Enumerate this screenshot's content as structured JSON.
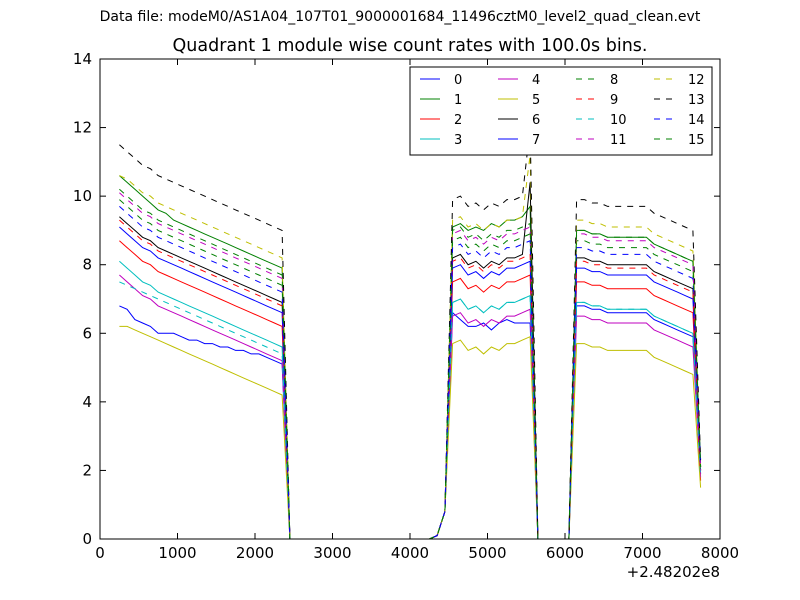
{
  "figure": {
    "suptitle": "Data file: modeM0/AS1A04_107T01_9000001684_11496cztM0_level2_quad_clean.evt"
  },
  "chart_data": {
    "type": "line",
    "title": "Quadrant 1 module wise count rates with 100.0s bins.",
    "xlabel": "",
    "ylabel": "",
    "x_offset_label": "+2.48202e8",
    "xlim": [
      0,
      8000
    ],
    "ylim": [
      0,
      14
    ],
    "xticks": [
      0,
      1000,
      2000,
      3000,
      4000,
      5000,
      6000,
      7000,
      8000
    ],
    "yticks": [
      0,
      2,
      4,
      6,
      8,
      10,
      12,
      14
    ],
    "legend_position": "top-right",
    "legend_columns": 4,
    "x": [
      250,
      350,
      450,
      550,
      650,
      750,
      850,
      950,
      1050,
      1150,
      1250,
      1350,
      1450,
      1550,
      1650,
      1750,
      1850,
      1950,
      2050,
      2150,
      2250,
      2350,
      2450,
      2550,
      2650,
      2750,
      2850,
      2950,
      3050,
      3150,
      3250,
      3350,
      3450,
      3550,
      3650,
      3750,
      3850,
      3950,
      4050,
      4150,
      4250,
      4350,
      4450,
      4550,
      4650,
      4750,
      4850,
      4950,
      5050,
      5150,
      5250,
      5350,
      5450,
      5550,
      5650,
      5750,
      5850,
      5950,
      6050,
      6150,
      6250,
      6350,
      6450,
      6550,
      6650,
      6750,
      6850,
      6950,
      7050,
      7150,
      7250,
      7350,
      7450,
      7550,
      7650,
      7750
    ],
    "series": [
      {
        "name": "0",
        "color": "#0000ff",
        "dash": "solid",
        "active": [
          6.8,
          6.7,
          6.4,
          6.3,
          6.2,
          6.0,
          6.0,
          6.0,
          5.9,
          5.8,
          5.8,
          5.7,
          5.7,
          5.6,
          5.6,
          5.5,
          5.5,
          5.4,
          5.4,
          5.3,
          5.2,
          5.1
        ],
        "mid": [
          6.6,
          6.4,
          6.2,
          6.2,
          6.3,
          6.1,
          6.3,
          6.4,
          6.3,
          6.3,
          6.3
        ],
        "end": [
          6.8,
          6.8,
          6.7,
          6.7,
          6.6,
          6.6,
          6.6,
          6.6,
          6.6,
          6.6,
          6.4,
          6.3,
          6.2,
          6.1,
          6.0,
          5.9
        ],
        "final": 1.9
      },
      {
        "name": "1",
        "color": "#008000",
        "dash": "solid",
        "active": [
          10.6,
          10.4,
          10.2,
          10.0,
          9.8,
          9.6,
          9.5,
          9.3,
          9.2,
          9.1,
          9.0,
          8.9,
          8.8,
          8.7,
          8.6,
          8.5,
          8.4,
          8.3,
          8.2,
          8.1,
          8.0,
          7.9
        ],
        "mid": [
          9.1,
          9.2,
          9.0,
          9.1,
          9.0,
          9.2,
          9.1,
          9.3,
          9.3,
          9.4,
          9.7
        ],
        "end": [
          9.0,
          9.0,
          8.9,
          8.9,
          8.8,
          8.8,
          8.8,
          8.8,
          8.8,
          8.8,
          8.6,
          8.5,
          8.4,
          8.3,
          8.2,
          8.1
        ],
        "final": 2.1
      },
      {
        "name": "2",
        "color": "#ff0000",
        "dash": "solid",
        "active": [
          8.7,
          8.5,
          8.3,
          8.1,
          8.0,
          7.8,
          7.7,
          7.6,
          7.5,
          7.4,
          7.3,
          7.2,
          7.1,
          7.0,
          6.9,
          6.8,
          6.7,
          6.6,
          6.5,
          6.4,
          6.3,
          6.2
        ],
        "mid": [
          7.5,
          7.6,
          7.3,
          7.4,
          7.2,
          7.4,
          7.3,
          7.5,
          7.5,
          7.6,
          7.7
        ],
        "end": [
          7.5,
          7.5,
          7.4,
          7.4,
          7.3,
          7.3,
          7.3,
          7.3,
          7.3,
          7.3,
          7.1,
          7.0,
          6.9,
          6.8,
          6.7,
          6.6
        ],
        "final": 1.7
      },
      {
        "name": "3",
        "color": "#00bfbf",
        "dash": "solid",
        "active": [
          8.1,
          7.9,
          7.7,
          7.5,
          7.4,
          7.2,
          7.1,
          7.0,
          6.9,
          6.8,
          6.7,
          6.6,
          6.5,
          6.4,
          6.3,
          6.2,
          6.1,
          6.0,
          5.9,
          5.8,
          5.7,
          5.6
        ],
        "mid": [
          6.9,
          7.0,
          6.7,
          6.8,
          6.6,
          6.8,
          6.7,
          6.9,
          6.9,
          7.0,
          7.1
        ],
        "end": [
          6.9,
          6.9,
          6.8,
          6.8,
          6.7,
          6.7,
          6.7,
          6.7,
          6.7,
          6.7,
          6.5,
          6.4,
          6.3,
          6.2,
          6.1,
          6.0
        ],
        "final": 2.0
      },
      {
        "name": "4",
        "color": "#bf00bf",
        "dash": "solid",
        "active": [
          7.7,
          7.5,
          7.3,
          7.1,
          7.0,
          6.8,
          6.7,
          6.6,
          6.5,
          6.4,
          6.3,
          6.2,
          6.1,
          6.0,
          5.9,
          5.8,
          5.7,
          5.6,
          5.5,
          5.4,
          5.3,
          5.2
        ],
        "mid": [
          6.5,
          6.6,
          6.3,
          6.4,
          6.2,
          6.4,
          6.3,
          6.5,
          6.5,
          6.6,
          6.7
        ],
        "end": [
          6.5,
          6.5,
          6.4,
          6.4,
          6.3,
          6.3,
          6.3,
          6.3,
          6.3,
          6.3,
          6.1,
          6.0,
          5.9,
          5.8,
          5.7,
          5.6
        ],
        "final": 1.8
      },
      {
        "name": "5",
        "color": "#bfbf00",
        "dash": "solid",
        "active": [
          6.2,
          6.2,
          6.1,
          6.0,
          5.9,
          5.8,
          5.7,
          5.6,
          5.5,
          5.4,
          5.3,
          5.2,
          5.1,
          5.0,
          4.9,
          4.8,
          4.7,
          4.6,
          4.5,
          4.4,
          4.3,
          4.2
        ],
        "mid": [
          5.7,
          5.8,
          5.5,
          5.6,
          5.4,
          5.6,
          5.5,
          5.7,
          5.7,
          5.8,
          5.9
        ],
        "end": [
          5.7,
          5.7,
          5.6,
          5.6,
          5.5,
          5.5,
          5.5,
          5.5,
          5.5,
          5.5,
          5.3,
          5.2,
          5.1,
          5.0,
          4.9,
          4.8
        ],
        "final": 1.5
      },
      {
        "name": "6",
        "color": "#000000",
        "dash": "solid",
        "active": [
          9.4,
          9.2,
          9.0,
          8.8,
          8.7,
          8.5,
          8.4,
          8.3,
          8.2,
          8.1,
          8.0,
          7.9,
          7.8,
          7.7,
          7.6,
          7.5,
          7.4,
          7.3,
          7.2,
          7.1,
          7.0,
          6.9
        ],
        "mid": [
          8.2,
          8.3,
          8.0,
          8.1,
          7.9,
          8.1,
          8.0,
          8.2,
          8.2,
          8.3,
          10.4
        ],
        "end": [
          8.2,
          8.2,
          8.1,
          8.1,
          8.0,
          8.0,
          8.0,
          8.0,
          8.0,
          8.0,
          7.8,
          7.7,
          7.6,
          7.5,
          7.4,
          7.3
        ],
        "final": 2.0
      },
      {
        "name": "7",
        "color": "#0000ff",
        "dash": "solid",
        "active": [
          9.1,
          8.9,
          8.7,
          8.5,
          8.4,
          8.2,
          8.1,
          8.0,
          7.9,
          7.8,
          7.7,
          7.6,
          7.5,
          7.4,
          7.3,
          7.2,
          7.1,
          7.0,
          6.9,
          6.8,
          6.7,
          6.6
        ],
        "mid": [
          7.9,
          8.0,
          7.7,
          7.8,
          7.6,
          7.8,
          7.7,
          7.9,
          7.9,
          8.0,
          8.1
        ],
        "end": [
          7.9,
          7.9,
          7.8,
          7.8,
          7.7,
          7.7,
          7.7,
          7.7,
          7.7,
          7.7,
          7.5,
          7.4,
          7.3,
          7.2,
          7.1,
          7.0
        ],
        "final": 2.1
      },
      {
        "name": "8",
        "color": "#008000",
        "dash": "dashed",
        "active": [
          9.9,
          9.7,
          9.5,
          9.3,
          9.2,
          9.0,
          8.9,
          8.8,
          8.7,
          8.6,
          8.5,
          8.4,
          8.3,
          8.2,
          8.1,
          8.0,
          7.9,
          7.8,
          7.7,
          7.6,
          7.5,
          7.4
        ],
        "mid": [
          8.7,
          8.8,
          8.5,
          8.6,
          8.4,
          8.6,
          8.5,
          8.7,
          8.7,
          8.8,
          8.9
        ],
        "end": [
          8.7,
          8.7,
          8.6,
          8.6,
          8.5,
          8.5,
          8.5,
          8.5,
          8.5,
          8.5,
          8.3,
          8.2,
          8.1,
          8.0,
          7.9,
          7.8
        ],
        "final": 2.2
      },
      {
        "name": "9",
        "color": "#ff0000",
        "dash": "dashed",
        "active": [
          9.3,
          9.1,
          8.9,
          8.7,
          8.6,
          8.4,
          8.3,
          8.2,
          8.1,
          8.0,
          7.9,
          7.8,
          7.7,
          7.6,
          7.5,
          7.4,
          7.3,
          7.2,
          7.1,
          7.0,
          6.9,
          6.8
        ],
        "mid": [
          8.1,
          8.2,
          7.9,
          8.0,
          7.8,
          8.0,
          7.9,
          8.1,
          8.1,
          8.2,
          8.3
        ],
        "end": [
          8.1,
          8.1,
          8.0,
          8.0,
          7.9,
          7.9,
          7.9,
          7.9,
          7.9,
          7.9,
          7.7,
          7.6,
          7.5,
          7.4,
          7.3,
          7.2
        ],
        "final": 1.9
      },
      {
        "name": "10",
        "color": "#00bfbf",
        "dash": "dashed",
        "active": [
          7.5,
          7.4,
          7.3,
          7.2,
          7.1,
          7.0,
          6.9,
          6.8,
          6.7,
          6.6,
          6.5,
          6.4,
          6.3,
          6.2,
          6.1,
          6.0,
          5.9,
          5.8,
          5.7,
          5.6,
          5.5,
          5.4
        ],
        "mid": [
          6.9,
          7.0,
          6.7,
          6.8,
          6.6,
          6.8,
          6.7,
          6.9,
          6.9,
          7.0,
          7.1
        ],
        "end": [
          6.9,
          6.9,
          6.8,
          6.8,
          6.7,
          6.7,
          6.7,
          6.7,
          6.7,
          6.7,
          6.5,
          6.4,
          6.3,
          6.2,
          6.1,
          6.0
        ],
        "final": 1.8
      },
      {
        "name": "11",
        "color": "#bf00bf",
        "dash": "dashed",
        "active": [
          10.1,
          9.9,
          9.7,
          9.5,
          9.4,
          9.2,
          9.1,
          9.0,
          8.9,
          8.8,
          8.7,
          8.6,
          8.5,
          8.4,
          8.3,
          8.2,
          8.1,
          8.0,
          7.9,
          7.8,
          7.7,
          7.6
        ],
        "mid": [
          8.9,
          9.0,
          8.7,
          8.8,
          8.6,
          8.8,
          8.7,
          8.9,
          8.9,
          9.0,
          9.1
        ],
        "end": [
          8.9,
          8.9,
          8.8,
          8.8,
          8.7,
          8.7,
          8.7,
          8.7,
          8.7,
          8.7,
          8.5,
          8.4,
          8.3,
          8.2,
          8.1,
          8.0
        ],
        "final": 2.0
      },
      {
        "name": "12",
        "color": "#bfbf00",
        "dash": "dashed",
        "active": [
          10.6,
          10.5,
          10.3,
          10.1,
          10.0,
          9.8,
          9.7,
          9.6,
          9.5,
          9.4,
          9.3,
          9.2,
          9.1,
          9.0,
          8.9,
          8.8,
          8.7,
          8.6,
          8.5,
          8.4,
          8.3,
          8.2
        ],
        "mid": [
          9.3,
          9.4,
          9.1,
          9.2,
          9.0,
          9.2,
          9.1,
          9.3,
          9.3,
          9.4,
          11.2
        ],
        "end": [
          9.3,
          9.3,
          9.2,
          9.2,
          9.1,
          9.1,
          9.1,
          9.1,
          9.1,
          9.1,
          8.9,
          8.8,
          8.7,
          8.6,
          8.5,
          8.4
        ],
        "final": 2.1
      },
      {
        "name": "13",
        "color": "#000000",
        "dash": "dashed",
        "active": [
          11.5,
          11.3,
          11.1,
          10.9,
          10.8,
          10.6,
          10.5,
          10.4,
          10.3,
          10.2,
          10.1,
          10.0,
          9.9,
          9.8,
          9.7,
          9.6,
          9.5,
          9.4,
          9.3,
          9.2,
          9.1,
          9.0
        ],
        "mid": [
          9.9,
          10.0,
          9.7,
          9.8,
          9.6,
          9.8,
          9.7,
          9.9,
          9.9,
          10.0,
          12.0
        ],
        "end": [
          9.9,
          9.9,
          9.8,
          9.8,
          9.7,
          9.7,
          9.7,
          9.7,
          9.7,
          9.7,
          9.5,
          9.4,
          9.3,
          9.2,
          9.1,
          9.0
        ],
        "final": 2.3
      },
      {
        "name": "14",
        "color": "#0000ff",
        "dash": "dashed",
        "active": [
          9.7,
          9.5,
          9.3,
          9.1,
          9.0,
          8.8,
          8.7,
          8.6,
          8.5,
          8.4,
          8.3,
          8.2,
          8.1,
          8.0,
          7.9,
          7.8,
          7.7,
          7.6,
          7.5,
          7.4,
          7.3,
          7.2
        ],
        "mid": [
          8.5,
          8.6,
          8.3,
          8.4,
          8.2,
          8.4,
          8.3,
          8.5,
          8.5,
          8.6,
          8.7
        ],
        "end": [
          8.5,
          8.5,
          8.4,
          8.4,
          8.3,
          8.3,
          8.3,
          8.3,
          8.3,
          8.3,
          8.1,
          8.0,
          7.9,
          7.8,
          7.7,
          7.6
        ],
        "final": 2.2
      },
      {
        "name": "15",
        "color": "#008000",
        "dash": "dashed",
        "active": [
          10.2,
          10.0,
          9.8,
          9.6,
          9.5,
          9.3,
          9.2,
          9.1,
          9.0,
          8.9,
          8.8,
          8.7,
          8.6,
          8.5,
          8.4,
          8.3,
          8.2,
          8.1,
          8.0,
          7.9,
          7.8,
          7.7
        ],
        "mid": [
          9.0,
          9.1,
          8.8,
          8.9,
          8.7,
          8.9,
          8.8,
          9.0,
          9.0,
          9.1,
          9.2
        ],
        "end": [
          9.0,
          9.0,
          8.9,
          8.9,
          8.8,
          8.8,
          8.8,
          8.8,
          8.8,
          8.8,
          8.6,
          8.5,
          8.4,
          8.3,
          8.2,
          8.1
        ],
        "final": 2.1
      }
    ]
  }
}
